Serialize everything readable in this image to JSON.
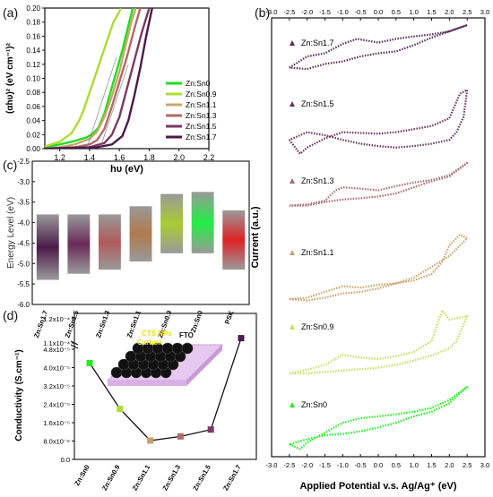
{
  "panels": {
    "a": "(a)",
    "b": "(b)",
    "c": "(c)",
    "d": "(d)"
  },
  "chart_data": [
    {
      "panel": "(a)",
      "type": "line",
      "xlabel": "hυ (eV)",
      "ylabel": "(αhυ)² (eV cm⁻¹)²",
      "xlim": [
        1.1,
        2.2
      ],
      "ylim": [
        0,
        0.2
      ],
      "xticks": [
        "1.2",
        "1.4",
        "1.6",
        "1.8",
        "2.0",
        "2.2"
      ],
      "yticks": [
        "0.00",
        "0.02",
        "0.04",
        "0.06",
        "0.08",
        "0.10",
        "0.12",
        "0.14",
        "0.16",
        "0.18",
        "0.20"
      ],
      "legend_position": "bottom-right",
      "series": [
        {
          "name": "Zn:Sn0",
          "color": "#22dd22",
          "x": [
            1.1,
            1.2,
            1.3,
            1.38,
            1.42,
            1.46,
            1.5,
            1.54,
            1.58,
            1.62,
            1.66,
            1.69
          ],
          "y": [
            0.002,
            0.006,
            0.011,
            0.016,
            0.021,
            0.03,
            0.05,
            0.08,
            0.11,
            0.14,
            0.175,
            0.2
          ]
        },
        {
          "name": "Zn:Sn0.9",
          "color": "#aadd33",
          "x": [
            1.1,
            1.2,
            1.28,
            1.33,
            1.36,
            1.4,
            1.44,
            1.48,
            1.52,
            1.56,
            1.6,
            1.61
          ],
          "y": [
            0.003,
            0.01,
            0.022,
            0.04,
            0.055,
            0.08,
            0.105,
            0.13,
            0.155,
            0.18,
            0.195,
            0.2
          ]
        },
        {
          "name": "Zn:Sn1.1",
          "color": "#c8a86a",
          "x": [
            1.1,
            1.2,
            1.3,
            1.4,
            1.45,
            1.5,
            1.55,
            1.6,
            1.64,
            1.68,
            1.71
          ],
          "y": [
            0.0,
            0.002,
            0.006,
            0.014,
            0.024,
            0.045,
            0.075,
            0.11,
            0.145,
            0.18,
            0.2
          ]
        },
        {
          "name": "Zn:Sn1.3",
          "color": "#b06a6a",
          "x": [
            1.1,
            1.3,
            1.4,
            1.45,
            1.5,
            1.55,
            1.6,
            1.65,
            1.7,
            1.74
          ],
          "y": [
            0.0,
            0.002,
            0.006,
            0.012,
            0.028,
            0.06,
            0.095,
            0.13,
            0.17,
            0.2
          ]
        },
        {
          "name": "Zn:Sn1.5",
          "color": "#7a3a60",
          "x": [
            1.1,
            1.4,
            1.5,
            1.55,
            1.6,
            1.65,
            1.7,
            1.75,
            1.8
          ],
          "y": [
            0.0,
            0.002,
            0.008,
            0.02,
            0.045,
            0.085,
            0.125,
            0.165,
            0.2
          ]
        },
        {
          "name": "Zn:Sn1.7",
          "color": "#4a1a4a",
          "x": [
            1.1,
            1.45,
            1.55,
            1.62,
            1.66,
            1.7,
            1.74,
            1.78,
            1.82
          ],
          "y": [
            0.0,
            0.002,
            0.006,
            0.018,
            0.04,
            0.075,
            0.115,
            0.16,
            0.2
          ]
        }
      ]
    },
    {
      "panel": "(b)",
      "type": "line",
      "xlabel": "Applied Potential v.s. Ag/Ag⁺ (eV)",
      "ylabel": "Current (a.u.)",
      "xlim": [
        -3.0,
        3.0
      ],
      "xticks": [
        "-3.0",
        "-2.5",
        "-2.0",
        "-1.5",
        "-1.0",
        "-0.5",
        "0.0",
        "0.5",
        "1.0",
        "1.5",
        "2.0",
        "2.5",
        "3.0"
      ],
      "series": [
        {
          "name": "Zn:Sn1.7",
          "color": "#5a2a5a",
          "x": [
            -2.5,
            -2.0,
            -1.5,
            -1.0,
            -0.6,
            0.0,
            0.5,
            1.0,
            1.5,
            2.0,
            2.5,
            2.0,
            1.5,
            1.0,
            0.5,
            0.0,
            -0.5,
            -1.0,
            -1.5,
            -2.0,
            -2.5
          ],
          "y": [
            0.32,
            0.5,
            0.55,
            0.7,
            0.78,
            0.72,
            0.78,
            0.82,
            0.85,
            0.9,
            1.0,
            0.9,
            0.8,
            0.68,
            0.58,
            0.55,
            0.5,
            0.42,
            0.38,
            0.3,
            0.32
          ]
        },
        {
          "name": "Zn:Sn1.5",
          "color": "#6a3060",
          "x": [
            -2.5,
            -2.2,
            -2.0,
            -1.5,
            -1.0,
            0.0,
            0.5,
            1.0,
            1.5,
            2.0,
            2.3,
            2.5,
            2.4,
            2.2,
            2.0,
            1.5,
            1.0,
            0.5,
            0.0,
            -0.5,
            -1.0,
            -1.5,
            -2.0,
            -2.5
          ],
          "y": [
            0.3,
            0.12,
            0.2,
            0.32,
            0.4,
            0.38,
            0.4,
            0.44,
            0.48,
            0.58,
            0.9,
            0.95,
            0.6,
            0.4,
            0.3,
            0.25,
            0.22,
            0.2,
            0.22,
            0.25,
            0.3,
            0.36,
            0.4,
            0.3
          ]
        },
        {
          "name": "Zn:Sn1.3",
          "color": "#a86a6a",
          "x": [
            -2.5,
            -2.0,
            -1.5,
            -1.2,
            -1.0,
            -0.5,
            0.0,
            0.5,
            1.0,
            1.5,
            2.0,
            2.5,
            2.0,
            1.5,
            1.0,
            0.5,
            0.0,
            -0.5,
            -1.0,
            -1.5,
            -2.0,
            -2.5
          ],
          "y": [
            0.3,
            0.32,
            0.38,
            0.55,
            0.6,
            0.58,
            0.55,
            0.62,
            0.68,
            0.72,
            0.8,
            1.0,
            0.78,
            0.7,
            0.6,
            0.5,
            0.45,
            0.42,
            0.4,
            0.36,
            0.3,
            0.3
          ]
        },
        {
          "name": "Zn:Sn1.1",
          "color": "#c8a06a",
          "x": [
            -2.5,
            -2.0,
            -1.5,
            -1.0,
            -0.5,
            0.0,
            0.5,
            1.0,
            1.5,
            1.8,
            2.0,
            2.3,
            2.5,
            2.0,
            1.5,
            1.0,
            0.5,
            0.0,
            -0.5,
            -1.0,
            -1.5,
            -2.0,
            -2.5
          ],
          "y": [
            0.1,
            0.12,
            0.2,
            0.28,
            0.26,
            0.3,
            0.32,
            0.36,
            0.45,
            0.62,
            0.85,
            1.0,
            0.95,
            0.7,
            0.55,
            0.4,
            0.32,
            0.25,
            0.2,
            0.18,
            0.12,
            0.08,
            0.1
          ]
        },
        {
          "name": "Zn:Sn0.9",
          "color": "#c0e060",
          "x": [
            -2.5,
            -2.0,
            -1.5,
            -1.0,
            -0.5,
            0.0,
            0.5,
            1.0,
            1.5,
            1.8,
            2.0,
            2.5,
            2.2,
            2.0,
            1.5,
            1.0,
            0.5,
            0.0,
            -0.5,
            -1.0,
            -1.5,
            -2.0,
            -2.5
          ],
          "y": [
            0.1,
            0.15,
            0.22,
            0.36,
            0.32,
            0.3,
            0.34,
            0.4,
            0.55,
            0.98,
            0.85,
            0.9,
            0.55,
            0.45,
            0.35,
            0.28,
            0.22,
            0.18,
            0.16,
            0.14,
            0.12,
            0.1,
            0.1
          ]
        },
        {
          "name": "Zn:Sn0",
          "color": "#22ee22",
          "x": [
            -2.5,
            -2.2,
            -2.0,
            -1.5,
            -1.0,
            -0.5,
            0.0,
            0.5,
            1.0,
            1.5,
            2.0,
            2.5,
            2.0,
            1.5,
            1.0,
            0.5,
            0.0,
            -0.5,
            -1.0,
            -1.5,
            -2.0,
            -2.5
          ],
          "y": [
            0.12,
            0.05,
            0.15,
            0.3,
            0.45,
            0.52,
            0.55,
            0.58,
            0.62,
            0.68,
            0.8,
            1.0,
            0.75,
            0.62,
            0.55,
            0.45,
            0.38,
            0.32,
            0.28,
            0.26,
            0.2,
            0.12
          ]
        }
      ]
    },
    {
      "panel": "(c)",
      "type": "bar",
      "ylabel": "Energy Level (eV)",
      "ylim": [
        -6.0,
        -2.5
      ],
      "yticks": [
        "-2.5",
        "-3.0",
        "-3.5",
        "-4.0",
        "-4.5",
        "-5.0",
        "-5.5",
        "-6.0"
      ],
      "categories": [
        "Zn:Sn1.7",
        "Zn:Sn1.5",
        "Zn:Sn1.3",
        "Zn:Sn1.1",
        "Zn:Sn0.9",
        "Zn:Sn0",
        "PSK"
      ],
      "cb": [
        -3.8,
        -3.8,
        -3.8,
        -3.6,
        -3.3,
        -3.25,
        -3.7
      ],
      "vb": [
        -5.4,
        -5.25,
        -5.15,
        -4.95,
        -4.75,
        -4.75,
        -5.15
      ],
      "colors": [
        "#4a1a4a",
        "#6a2a5a",
        "#b05a5a",
        "#b07a4a",
        "#aacc33",
        "#22ee44",
        "#dd2222"
      ]
    },
    {
      "panel": "(d)",
      "type": "line",
      "ylabel": "Conductivity (S.cm⁻¹)",
      "categories": [
        "Zn:Sn0",
        "Zn:Sn0.9",
        "Zn:Sn1.1",
        "Zn:Sn1.3",
        "Zn:Sn1.5",
        "Zn:Sn1.7"
      ],
      "values": [
        4.2e-05,
        2.2e-05,
        8.2e-06,
        1e-05,
        1.3e-05,
        0.000112
      ],
      "colors": [
        "#22ee22",
        "#aadd33",
        "#c8a06a",
        "#b06a6a",
        "#7a3a60",
        "#4a1a4a"
      ],
      "yticks": [
        "0.0",
        "8.0x10⁻⁶",
        "1.6x10⁻⁵",
        "2.4x10⁻⁵",
        "3.2x10⁻⁵",
        "4.0x10⁻⁵",
        "4.8x10⁻⁵",
        "1.1x10⁻⁴",
        "1.2x10⁻⁴"
      ],
      "inset_labels": {
        "ctsnps": "CTS NPs",
        "fto": "FTO",
        "carbon": "Carbon"
      }
    }
  ]
}
